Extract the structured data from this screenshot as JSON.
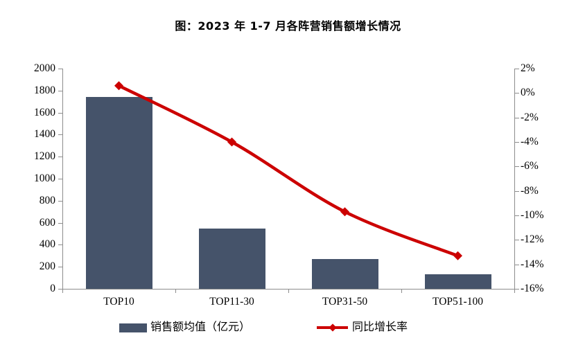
{
  "chart_data": {
    "type": "combo",
    "title": "图：2023 年 1-7 月各阵营销售额增长情况",
    "categories": [
      "TOP10",
      "TOP11-30",
      "TOP31-50",
      "TOP51-100"
    ],
    "series": [
      {
        "name": "销售额均值（亿元）",
        "type": "bar",
        "axis": "left",
        "values": [
          1740,
          545,
          270,
          130
        ],
        "color": "#45536A"
      },
      {
        "name": "同比增长率",
        "type": "line",
        "axis": "right",
        "marker": "diamond",
        "unit": "%",
        "values": [
          0.6,
          -4.0,
          -9.7,
          -13.3
        ],
        "color": "#CC0000"
      }
    ],
    "left_axis": {
      "min": 0,
      "max": 2000,
      "step": 200,
      "tick_labels": [
        "0",
        "200",
        "400",
        "600",
        "800",
        "1000",
        "1200",
        "1400",
        "1600",
        "1800",
        "2000"
      ]
    },
    "right_axis": {
      "min": -16,
      "max": 2,
      "step": 2,
      "tick_labels": [
        "-16%",
        "-14%",
        "-12%",
        "-10%",
        "-8%",
        "-6%",
        "-4%",
        "-2%",
        "0%",
        "2%"
      ]
    },
    "grid": false,
    "legend_position": "bottom",
    "axis_color": "#8C8C8C",
    "background_color": "#FFFFFF"
  }
}
